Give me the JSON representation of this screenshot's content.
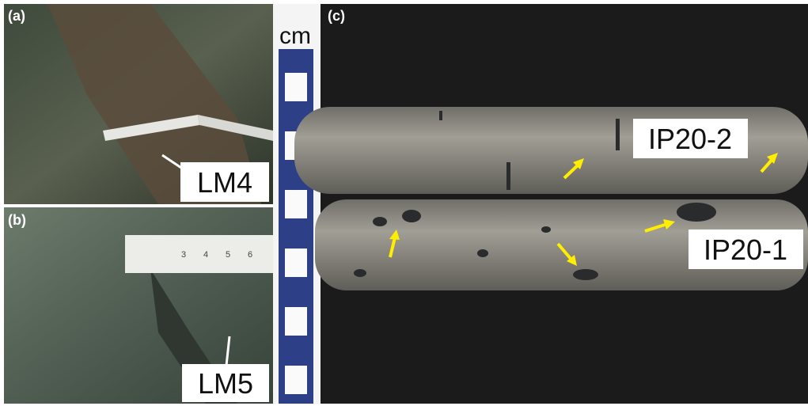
{
  "panels": [
    {
      "label": "(a)",
      "annotation": "LM4"
    },
    {
      "label": "(b)",
      "annotation": "LM5",
      "ruler_ticks": [
        "3",
        "4",
        "5",
        "6"
      ]
    },
    {
      "label": "(c)",
      "annotations": [
        "IP20-2",
        "IP20-1"
      ]
    }
  ],
  "scale_bar": {
    "unit": "cm"
  }
}
